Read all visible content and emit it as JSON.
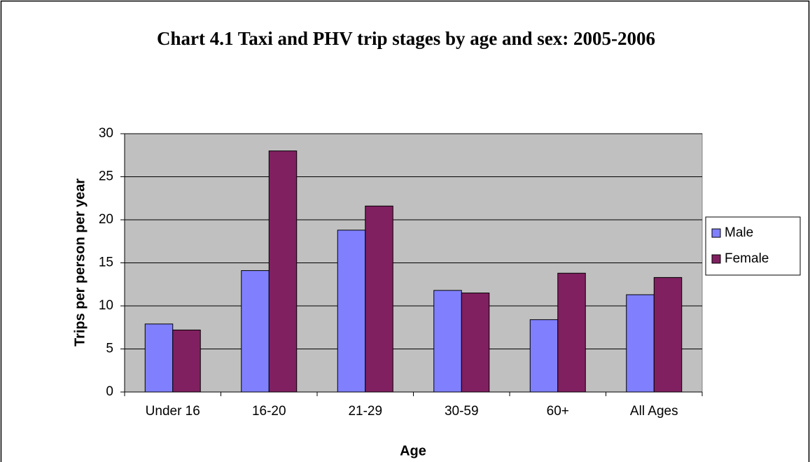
{
  "chart_data": {
    "type": "bar",
    "title": "Chart 4.1 Taxi and PHV trip stages by age and sex: 2005-2006",
    "x_label": "Age",
    "y_label": "Trips per person per year",
    "categories": [
      "Under 16",
      "16-20",
      "21-29",
      "30-59",
      "60+",
      "All Ages"
    ],
    "series": [
      {
        "name": "Male",
        "color": "#8080ff",
        "values": [
          7.9,
          14.1,
          18.8,
          11.8,
          8.4,
          11.3
        ]
      },
      {
        "name": "Female",
        "color": "#802060",
        "values": [
          7.2,
          28.0,
          21.6,
          11.5,
          13.8,
          13.3
        ]
      }
    ],
    "ylim": [
      0,
      30
    ],
    "yticks": [
      0,
      5,
      10,
      15,
      20,
      25,
      30
    ],
    "grid": true,
    "legend": "right"
  }
}
